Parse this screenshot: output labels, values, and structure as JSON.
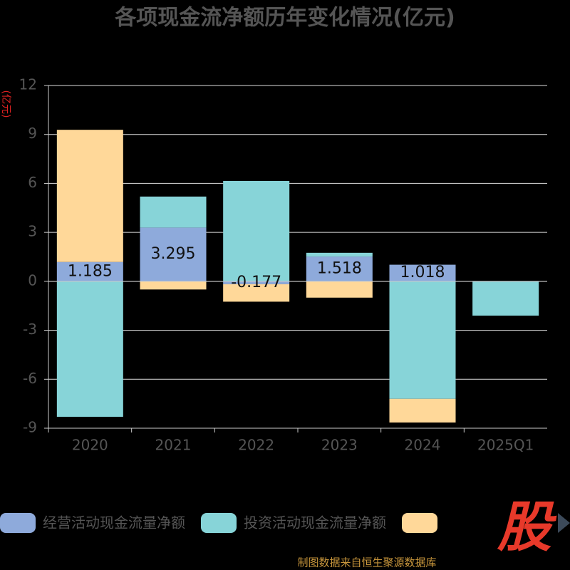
{
  "chart_data": {
    "type": "stacked-bar",
    "title": "各项现金流净额历年变化情况(亿元)",
    "y_label": "(亿元)",
    "categories": [
      "2020",
      "2021",
      "2022",
      "2023",
      "2024",
      "2025Q1"
    ],
    "series": [
      {
        "name": "经营活动现金流量净额",
        "color": "#8eaadb",
        "values": [
          1.185,
          3.295,
          -0.177,
          1.518,
          1.018,
          null
        ],
        "labels": true
      },
      {
        "name": "投资活动现金流量净额",
        "color": "#87d4d8",
        "values": [
          -8.3,
          1.9,
          6.15,
          0.23,
          -7.2,
          -2.1
        ]
      },
      {
        "color": "#ffd899",
        "values": [
          8.1,
          -0.5,
          -1.07,
          -1.0,
          -1.45,
          null
        ]
      }
    ],
    "ylim": [
      -9,
      12
    ],
    "yticks": [
      -9,
      -6,
      -3,
      0,
      3,
      6,
      9,
      12
    ],
    "grid": true,
    "source": "制图数据来自恒生聚源数据库",
    "logo": "股"
  }
}
